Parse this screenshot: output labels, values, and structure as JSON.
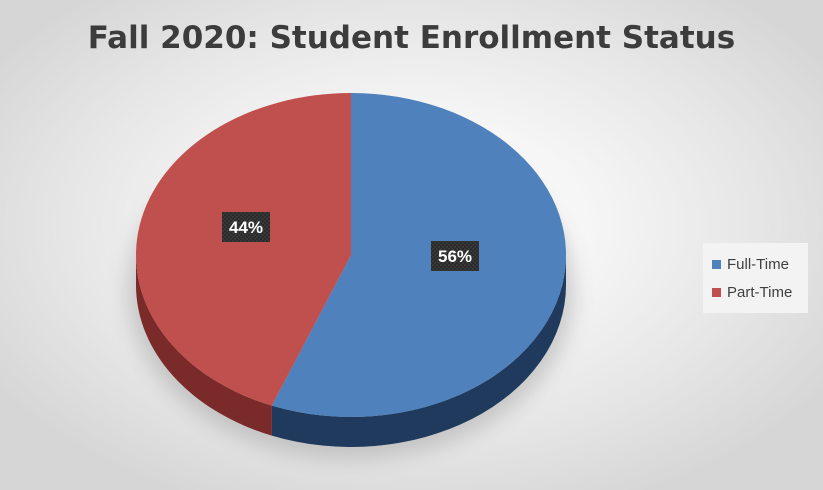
{
  "chart_data": {
    "type": "pie",
    "title": "Fall 2020: Student Enrollment Status",
    "categories": [
      "Full-Time",
      "Part-Time"
    ],
    "values": [
      56,
      44
    ],
    "data_labels": [
      "56%",
      "44%"
    ],
    "colors": [
      "#4f81bd",
      "#c0504d"
    ],
    "side_colors": [
      "#1f3a5c",
      "#7a2a28"
    ],
    "label_box_color": "#262626",
    "label_text_color": "#ffffff",
    "legend_position": "right",
    "style": "3d"
  }
}
